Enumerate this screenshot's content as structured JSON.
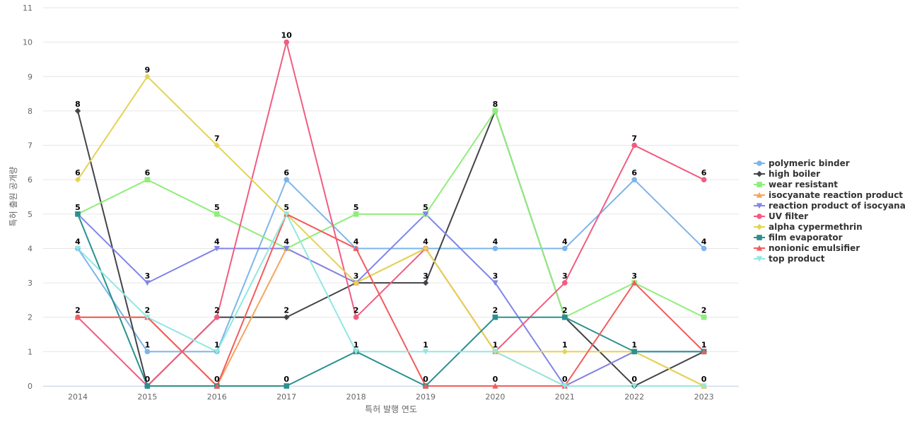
{
  "chart_data": {
    "type": "line",
    "title": "",
    "xlabel": "특허 발행 연도",
    "ylabel": "특허 출원 공개량",
    "categories": [
      "2014",
      "2015",
      "2016",
      "2017",
      "2018",
      "2019",
      "2020",
      "2021",
      "2022",
      "2023"
    ],
    "ylim": [
      0,
      11
    ],
    "yticks": [
      0,
      1,
      2,
      3,
      4,
      5,
      6,
      7,
      8,
      9,
      10,
      11
    ],
    "grid": "horizontal",
    "legend_position": "right",
    "series": [
      {
        "name": "polymeric binder",
        "color": "#7cb5ec",
        "marker": "circle",
        "values": [
          4,
          1,
          1,
          6,
          4,
          4,
          4,
          4,
          6,
          4
        ]
      },
      {
        "name": "high boiler",
        "color": "#434348",
        "marker": "diamond",
        "values": [
          8,
          0,
          2,
          2,
          3,
          3,
          8,
          2,
          0,
          1
        ]
      },
      {
        "name": "wear resistant",
        "color": "#90ed7d",
        "marker": "square",
        "values": [
          5,
          6,
          5,
          4,
          5,
          5,
          8,
          2,
          3,
          2
        ]
      },
      {
        "name": "isocyanate reaction product",
        "color": "#f7a35c",
        "marker": "triangle",
        "values": [
          2,
          2,
          0,
          4,
          3,
          4,
          1,
          0,
          1,
          0
        ]
      },
      {
        "name": "reaction product of isocyanate",
        "color": "#8085e9",
        "marker": "triangle-down",
        "values": [
          5,
          3,
          4,
          4,
          3,
          5,
          3,
          0,
          1,
          1
        ]
      },
      {
        "name": "UV filter",
        "color": "#f15c80",
        "marker": "circle",
        "values": [
          2,
          0,
          2,
          10,
          2,
          4,
          1,
          3,
          7,
          6
        ]
      },
      {
        "name": "alpha cypermethrin",
        "color": "#e4d354",
        "marker": "diamond",
        "values": [
          6,
          9,
          7,
          5,
          3,
          4,
          1,
          1,
          1,
          0
        ]
      },
      {
        "name": "film evaporator",
        "color": "#2b908f",
        "marker": "square",
        "values": [
          5,
          0,
          0,
          0,
          1,
          0,
          2,
          2,
          1,
          1
        ]
      },
      {
        "name": "nonionic emulsifier",
        "color": "#f45b5b",
        "marker": "triangle",
        "values": [
          2,
          2,
          0,
          5,
          4,
          0,
          0,
          0,
          3,
          1
        ]
      },
      {
        "name": "top product",
        "color": "#91e8e1",
        "marker": "triangle-down",
        "values": [
          4,
          2,
          1,
          5,
          1,
          1,
          1,
          0,
          0,
          0
        ]
      }
    ],
    "data_labels": [
      {
        "category": "2014",
        "value": 8
      },
      {
        "category": "2014",
        "value": 6
      },
      {
        "category": "2014",
        "value": 5
      },
      {
        "category": "2014",
        "value": 4
      },
      {
        "category": "2014",
        "value": 2
      },
      {
        "category": "2015",
        "value": 9
      },
      {
        "category": "2015",
        "value": 6
      },
      {
        "category": "2015",
        "value": 3
      },
      {
        "category": "2015",
        "value": 2
      },
      {
        "category": "2015",
        "value": 1
      },
      {
        "category": "2015",
        "value": 0
      },
      {
        "category": "2016",
        "value": 7
      },
      {
        "category": "2016",
        "value": 5
      },
      {
        "category": "2016",
        "value": 4
      },
      {
        "category": "2016",
        "value": 2
      },
      {
        "category": "2016",
        "value": 1
      },
      {
        "category": "2016",
        "value": 0
      },
      {
        "category": "2017",
        "value": 10
      },
      {
        "category": "2017",
        "value": 6
      },
      {
        "category": "2017",
        "value": 5
      },
      {
        "category": "2017",
        "value": 4
      },
      {
        "category": "2017",
        "value": 2
      },
      {
        "category": "2017",
        "value": 0
      },
      {
        "category": "2018",
        "value": 5
      },
      {
        "category": "2018",
        "value": 4
      },
      {
        "category": "2018",
        "value": 3
      },
      {
        "category": "2018",
        "value": 2
      },
      {
        "category": "2018",
        "value": 1
      },
      {
        "category": "2019",
        "value": 5
      },
      {
        "category": "2019",
        "value": 4
      },
      {
        "category": "2019",
        "value": 3
      },
      {
        "category": "2019",
        "value": 1
      },
      {
        "category": "2019",
        "value": 0
      },
      {
        "category": "2020",
        "value": 8
      },
      {
        "category": "2020",
        "value": 4
      },
      {
        "category": "2020",
        "value": 3
      },
      {
        "category": "2020",
        "value": 2
      },
      {
        "category": "2020",
        "value": 1
      },
      {
        "category": "2020",
        "value": 0
      },
      {
        "category": "2021",
        "value": 4
      },
      {
        "category": "2021",
        "value": 3
      },
      {
        "category": "2021",
        "value": 2
      },
      {
        "category": "2021",
        "value": 1
      },
      {
        "category": "2021",
        "value": 0
      },
      {
        "category": "2022",
        "value": 7
      },
      {
        "category": "2022",
        "value": 6
      },
      {
        "category": "2022",
        "value": 3
      },
      {
        "category": "2022",
        "value": 1
      },
      {
        "category": "2022",
        "value": 0
      },
      {
        "category": "2023",
        "value": 6
      },
      {
        "category": "2023",
        "value": 4
      },
      {
        "category": "2023",
        "value": 2
      },
      {
        "category": "2023",
        "value": 1
      },
      {
        "category": "2023",
        "value": 0
      }
    ]
  }
}
